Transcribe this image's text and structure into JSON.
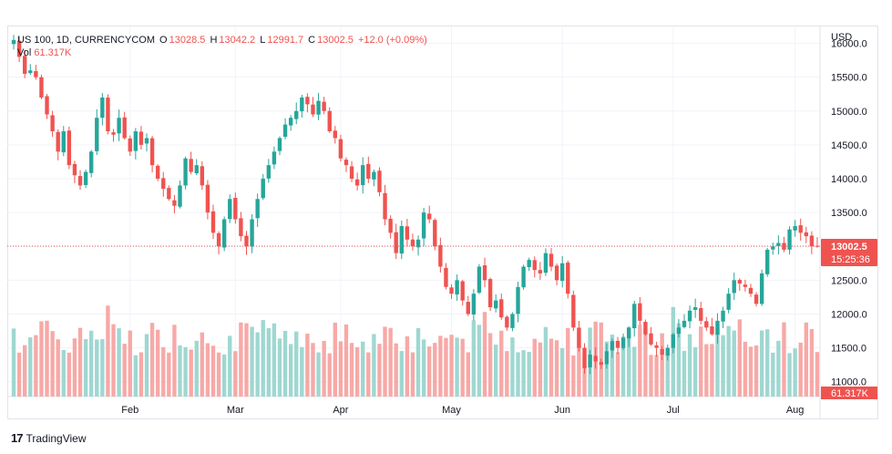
{
  "legend": {
    "symbol": "US 100, 1D, CURRENCYCOM",
    "o_label": "O",
    "o_value": "13028.5",
    "h_label": "H",
    "h_value": "13042.2",
    "l_label": "L",
    "l_value": "12991.7",
    "c_label": "C",
    "c_value": "13002.5",
    "change": "+12.0 (+0.09%)",
    "vol_label": "Vol",
    "vol_value": "61.317K"
  },
  "axis": {
    "currency": "USD",
    "price_ticks": [
      "16000.0",
      "15500.0",
      "15000.0",
      "14500.0",
      "14000.0",
      "13500.0",
      "13000.0",
      "12500.0",
      "12000.0",
      "11500.0",
      "11000.0"
    ],
    "price_tick_values": [
      16000,
      15500,
      15000,
      14500,
      14000,
      13500,
      13000,
      12500,
      12000,
      11500,
      11000
    ],
    "months": [
      "Feb",
      "Mar",
      "Apr",
      "May",
      "Jun",
      "Jul",
      "Aug"
    ]
  },
  "badges": {
    "last_price": "13002.5",
    "countdown": "15:25:36",
    "volume": "61.317K"
  },
  "branding": {
    "name": "TradingView"
  },
  "colors": {
    "up": "#26a69a",
    "down": "#ef5350",
    "up_vol": "#9fd7d1",
    "down_vol": "#f7a9a7",
    "grid": "#f0f3fa"
  },
  "chart_data": {
    "type": "candlestick",
    "ylim": [
      10780,
      16250
    ],
    "last_price": 13002.5,
    "month_starts": {
      "Feb": 21,
      "Mar": 40,
      "Apr": 59,
      "May": 79,
      "Jun": 99,
      "Jul": 119,
      "Aug": 141
    },
    "closes": [
      16050,
      15800,
      15550,
      15600,
      15500,
      15200,
      14950,
      14700,
      14400,
      14700,
      14200,
      14050,
      13900,
      14100,
      14400,
      14900,
      15200,
      14700,
      14650,
      14900,
      14600,
      14400,
      14700,
      14500,
      14600,
      14200,
      14000,
      13850,
      13700,
      13600,
      13900,
      14300,
      14100,
      14200,
      13900,
      13500,
      13200,
      13000,
      13400,
      13700,
      13400,
      13150,
      13000,
      13400,
      13700,
      14000,
      14200,
      14400,
      14600,
      14800,
      14900,
      15000,
      15200,
      15100,
      14950,
      15150,
      15000,
      14700,
      14600,
      14300,
      14200,
      14000,
      13900,
      14200,
      14000,
      14100,
      13800,
      13400,
      13200,
      12900,
      13300,
      13100,
      13000,
      13100,
      13500,
      13400,
      13000,
      12700,
      12400,
      12300,
      12500,
      12200,
      12000,
      12300,
      12700,
      12500,
      12100,
      12200,
      11950,
      11800,
      12000,
      12400,
      12700,
      12800,
      12650,
      12600,
      12900,
      12700,
      12500,
      12750,
      12300,
      11800,
      11500,
      11200,
      11400,
      11300,
      11250,
      11450,
      11600,
      11500,
      11650,
      11800,
      12150,
      11900,
      11700,
      11550,
      11500,
      11400,
      11500,
      11700,
      11800,
      11900,
      12050,
      12100,
      11900,
      11800,
      11700,
      11900,
      12050,
      12300,
      12500,
      12450,
      12400,
      12300,
      12150,
      12600,
      12950,
      13000,
      13050,
      12950,
      13250,
      13300,
      13200,
      13150,
      13000,
      13000
    ]
  }
}
